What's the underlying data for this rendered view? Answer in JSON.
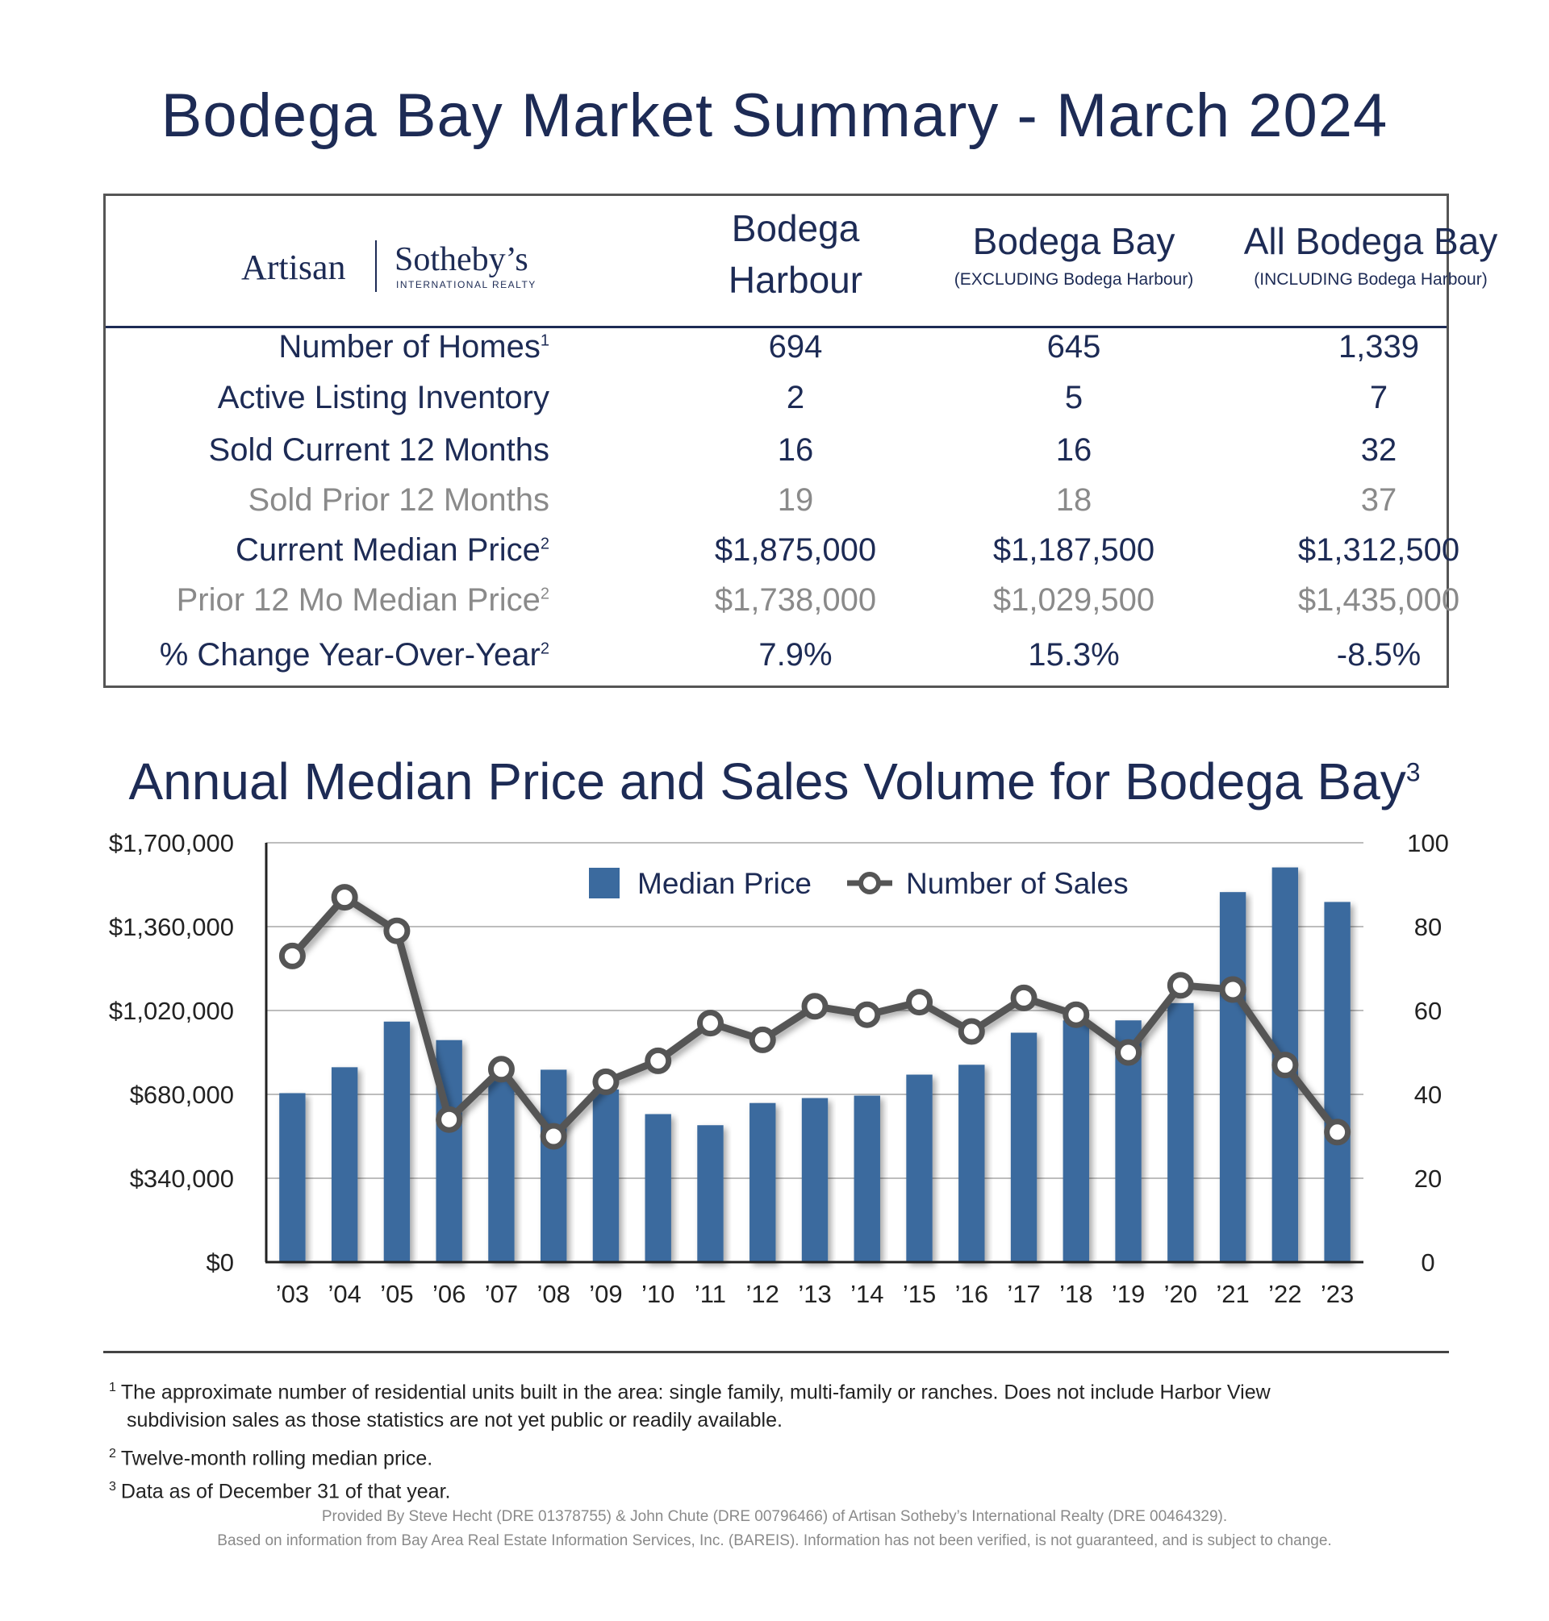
{
  "title": "Bodega Bay Market Summary - March 2024",
  "logo": {
    "left": "Artisan",
    "right": "Sotheby’s",
    "sub": "INTERNATIONAL REALTY"
  },
  "table": {
    "columns": [
      {
        "line1": "Bodega",
        "line2": "Harbour",
        "note": ""
      },
      {
        "line1": "Bodega Bay",
        "line2": "",
        "note": "(EXCLUDING Bodega Harbour)"
      },
      {
        "line1": "All Bodega Bay",
        "line2": "",
        "note": "(INCLUDING Bodega Harbour)"
      }
    ],
    "rows": [
      {
        "label": "Number of Homes",
        "sup": "1",
        "values": [
          "694",
          "645",
          "1,339"
        ],
        "gray": false
      },
      {
        "label": "Active Listing Inventory",
        "sup": "",
        "values": [
          "2",
          "5",
          "7"
        ],
        "gray": false
      },
      {
        "label": "Sold Current 12 Months",
        "sup": "",
        "values": [
          "16",
          "16",
          "32"
        ],
        "gray": false
      },
      {
        "label": "Sold Prior 12 Months",
        "sup": "",
        "values": [
          "19",
          "18",
          "37"
        ],
        "gray": true
      },
      {
        "label": "Current Median Price",
        "sup": "2",
        "values": [
          "$1,875,000",
          "$1,187,500",
          "$1,312,500"
        ],
        "gray": false
      },
      {
        "label": "Prior 12 Mo Median Price",
        "sup": "2",
        "values": [
          "$1,738,000",
          "$1,029,500",
          "$1,435,000"
        ],
        "gray": true
      },
      {
        "label": "% Change Year-Over-Year",
        "sup": "2",
        "values": [
          "7.9%",
          "15.3%",
          "-8.5%"
        ],
        "gray": false
      }
    ]
  },
  "chart_title": "Annual Median Price and Sales Volume for Bodega Bay",
  "chart_title_sup": "3",
  "chart_data": {
    "type": "bar",
    "title": "Annual Median Price and Sales Volume for Bodega Bay",
    "categories": [
      "’03",
      "’04",
      "’05",
      "’06",
      "’07",
      "’08",
      "’09",
      "’10",
      "’11",
      "’12",
      "’13",
      "’14",
      "’15",
      "’16",
      "’17",
      "’18",
      "’19",
      "’20",
      "’21",
      "’22",
      "’23"
    ],
    "series": [
      {
        "name": "Median Price",
        "type": "bar",
        "axis": "left",
        "color": "#3b6a9e",
        "values": [
          685000,
          790000,
          975000,
          900000,
          740000,
          780000,
          700000,
          600000,
          555000,
          645000,
          665000,
          675000,
          760000,
          800000,
          930000,
          980000,
          980000,
          1050000,
          1500000,
          1600000,
          1460000
        ]
      },
      {
        "name": "Number of Sales",
        "type": "line",
        "axis": "right",
        "color": "#555555",
        "values": [
          73,
          87,
          79,
          34,
          46,
          30,
          43,
          48,
          57,
          53,
          61,
          59,
          62,
          55,
          63,
          59,
          50,
          66,
          65,
          47,
          31
        ]
      }
    ],
    "ylim": [
      0,
      1700000
    ],
    "y_ticks": [
      "$0",
      "$340,000",
      "$680,000",
      "$1,020,000",
      "$1,360,000",
      "$1,700,000"
    ],
    "y2lim": [
      0,
      100
    ],
    "y2_ticks": [
      "0",
      "20",
      "40",
      "60",
      "80",
      "100"
    ],
    "grid": true,
    "legend": "top-center"
  },
  "footnotes": [
    {
      "n": "1",
      "lines": [
        "The approximate number of residential units built in the area: single family, multi-family or ranches. Does not include Harbor View",
        "subdivision sales as those statistics are not yet public or readily available."
      ]
    },
    {
      "n": "2",
      "lines": [
        "Twelve-month rolling median price."
      ]
    },
    {
      "n": "3",
      "lines": [
        "Data as of December 31 of that year."
      ]
    }
  ],
  "credits": [
    "Provided By Steve Hecht (DRE 01378755) & John Chute (DRE 00796466) of Artisan Sotheby’s International Realty (DRE 00464329).",
    "Based on information from Bay Area Real Estate Information Services, Inc. (BAREIS). Information has not been verified, is not guaranteed, and is subject to change."
  ]
}
